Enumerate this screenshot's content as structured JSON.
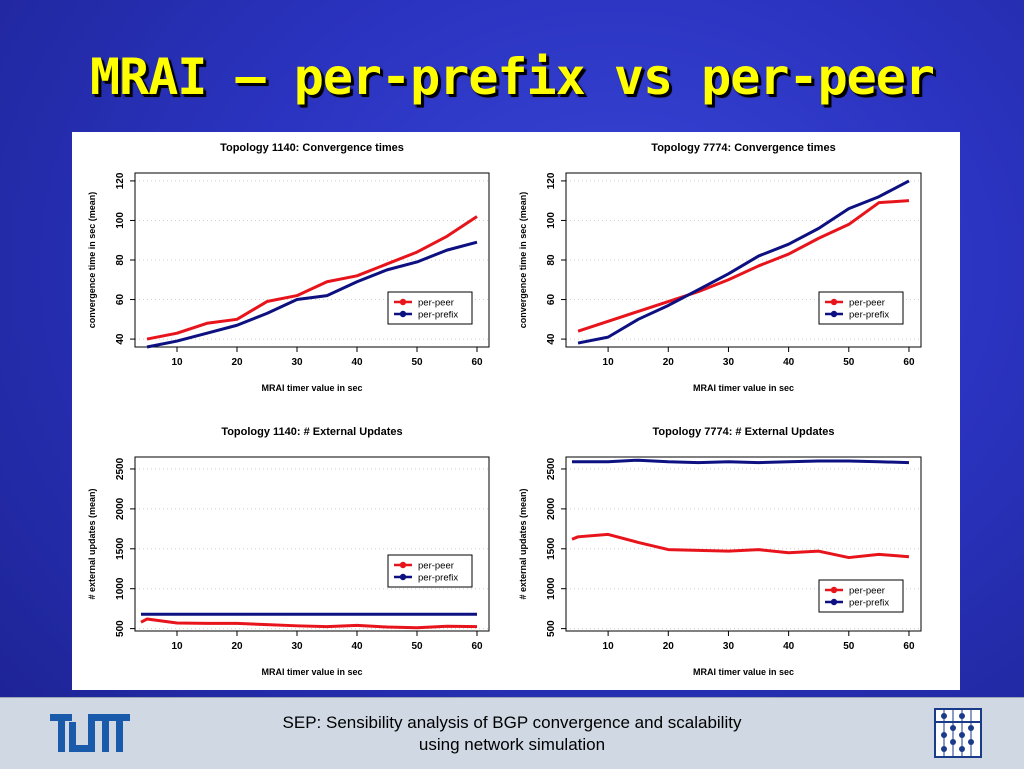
{
  "slide": {
    "title": "MRAI – per-prefix vs per-peer",
    "footer_line1": "SEP: Sensibility analysis of BGP convergence and scalability",
    "footer_line2": "using network simulation",
    "logo_left_icon": "tum-logo-icon",
    "logo_right_icon": "abacus-logo-icon"
  },
  "colors": {
    "per_peer": "#e8141c",
    "per_prefix": "#0d1080",
    "background": "#2a33bf",
    "title": "#ffff00"
  },
  "chart_data": [
    {
      "type": "line",
      "title": "Topology 1140: Convergence times",
      "xlabel": "MRAI timer value in sec",
      "ylabel": "convergence time in sec (mean)",
      "x": [
        5,
        10,
        15,
        20,
        25,
        30,
        35,
        40,
        45,
        50,
        55,
        60
      ],
      "xticks": [
        10,
        20,
        30,
        40,
        50,
        60
      ],
      "yticks": [
        40,
        60,
        80,
        100,
        120
      ],
      "xlim": [
        3,
        62
      ],
      "ylim": [
        36,
        124
      ],
      "grid": true,
      "legend_position": "right",
      "series": [
        {
          "name": "per-peer",
          "color": "#e8141c",
          "values": [
            40,
            43,
            48,
            50,
            59,
            62,
            69,
            72,
            78,
            84,
            92,
            102
          ]
        },
        {
          "name": "per-prefix",
          "color": "#0d1080",
          "values": [
            36,
            39,
            43,
            47,
            53,
            60,
            62,
            69,
            75,
            79,
            85,
            89
          ]
        }
      ]
    },
    {
      "type": "line",
      "title": "Topology 7774: Convergence times",
      "xlabel": "MRAI timer value in sec",
      "ylabel": "convergence time in sec (mean)",
      "x": [
        5,
        10,
        15,
        20,
        25,
        30,
        35,
        40,
        45,
        50,
        55,
        60
      ],
      "xticks": [
        10,
        20,
        30,
        40,
        50,
        60
      ],
      "yticks": [
        40,
        60,
        80,
        100,
        120
      ],
      "xlim": [
        3,
        62
      ],
      "ylim": [
        36,
        124
      ],
      "grid": true,
      "legend_position": "right",
      "series": [
        {
          "name": "per-peer",
          "color": "#e8141c",
          "values": [
            44,
            49,
            54,
            59,
            64,
            70,
            77,
            83,
            91,
            98,
            109,
            110
          ]
        },
        {
          "name": "per-prefix",
          "color": "#0d1080",
          "values": [
            38,
            41,
            50,
            57,
            65,
            73,
            82,
            88,
            96,
            106,
            112,
            120
          ]
        }
      ]
    },
    {
      "type": "line",
      "title": "Topology 1140: # External Updates",
      "xlabel": "MRAI timer value in sec",
      "ylabel": "# external updates (mean)",
      "x": [
        4,
        5,
        10,
        15,
        20,
        25,
        30,
        35,
        40,
        45,
        50,
        55,
        60
      ],
      "xticks": [
        10,
        20,
        30,
        40,
        50,
        60
      ],
      "yticks": [
        500,
        1000,
        1500,
        2000,
        2500
      ],
      "xlim": [
        3,
        62
      ],
      "ylim": [
        470,
        2650
      ],
      "grid": true,
      "legend_position": "right",
      "series": [
        {
          "name": "per-peer",
          "color": "#e8141c",
          "values": [
            580,
            620,
            570,
            565,
            565,
            550,
            535,
            525,
            540,
            520,
            510,
            530,
            525
          ]
        },
        {
          "name": "per-prefix",
          "color": "#0d1080",
          "values": [
            680,
            680,
            680,
            680,
            680,
            680,
            680,
            680,
            680,
            680,
            680,
            680,
            680
          ]
        }
      ]
    },
    {
      "type": "line",
      "title": "Topology 7774: # External Updates",
      "xlabel": "MRAI timer value in sec",
      "ylabel": "# external updates (mean)",
      "x": [
        4,
        5,
        10,
        15,
        20,
        25,
        30,
        35,
        40,
        45,
        50,
        55,
        60
      ],
      "xticks": [
        10,
        20,
        30,
        40,
        50,
        60
      ],
      "yticks": [
        500,
        1000,
        1500,
        2000,
        2500
      ],
      "xlim": [
        3,
        62
      ],
      "ylim": [
        470,
        2650
      ],
      "grid": true,
      "legend_position": "bottom-right",
      "series": [
        {
          "name": "per-peer",
          "color": "#e8141c",
          "values": [
            1620,
            1650,
            1680,
            1580,
            1490,
            1480,
            1470,
            1490,
            1450,
            1470,
            1390,
            1430,
            1400
          ]
        },
        {
          "name": "per-prefix",
          "color": "#0d1080",
          "values": [
            2590,
            2590,
            2590,
            2610,
            2590,
            2580,
            2590,
            2580,
            2590,
            2600,
            2600,
            2590,
            2580
          ]
        }
      ]
    }
  ]
}
